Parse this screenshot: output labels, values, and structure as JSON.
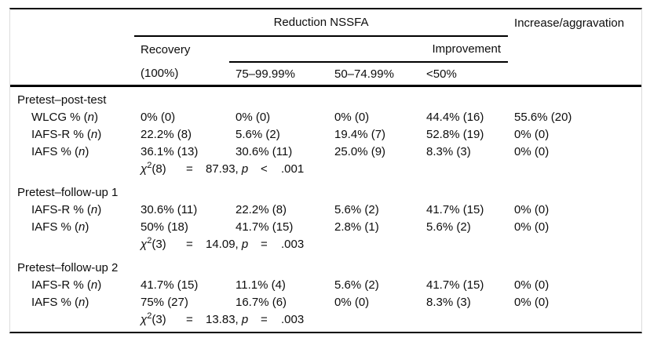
{
  "table": {
    "header": {
      "reduction_group": "Reduction NSSFA",
      "increase_col": "Increase/aggravation",
      "recovery": "Recovery",
      "improvement": "Improvement",
      "col_labels": [
        "(100%)",
        "75–99.99%",
        "50–74.99%",
        "<50%"
      ]
    },
    "shared": {
      "chi_symbol": "χ",
      "chi_sup": "2",
      "suffix_pre": " % (",
      "n": "n",
      "suffix_post": ")"
    },
    "sections": [
      {
        "title": "Pretest–post-test",
        "rows": [
          {
            "label": "WLCG",
            "cells": [
              "0% (0)",
              "0% (0)",
              "0% (0)",
              "44.4% (16)",
              "55.6% (20)"
            ]
          },
          {
            "label": "IAFS-R",
            "cells": [
              "22.2% (8)",
              "5.6% (2)",
              "19.4% (7)",
              "52.8% (19)",
              "0% (0)"
            ]
          },
          {
            "label": "IAFS",
            "cells": [
              "36.1% (13)",
              "30.6% (11)",
              "25.0% (9)",
              "8.3% (3)",
              "0% (0)"
            ]
          }
        ],
        "chi": {
          "df": "(8)",
          "eq": "=",
          "stat": "87.93,",
          "p": "p",
          "op": "<",
          "pval": ".001"
        }
      },
      {
        "title": "Pretest–follow-up 1",
        "rows": [
          {
            "label": "IAFS-R",
            "cells": [
              "30.6% (11)",
              "22.2% (8)",
              "5.6% (2)",
              "41.7% (15)",
              "0% (0)"
            ]
          },
          {
            "label": "IAFS",
            "cells": [
              "50% (18)",
              "41.7% (15)",
              "2.8% (1)",
              "5.6% (2)",
              "0% (0)"
            ]
          }
        ],
        "chi": {
          "df": "(3)",
          "eq": "=",
          "stat": "14.09,",
          "p": "p",
          "op": "=",
          "pval": ".003"
        }
      },
      {
        "title": "Pretest–follow-up 2",
        "rows": [
          {
            "label": "IAFS-R",
            "cells": [
              "41.7% (15)",
              "11.1% (4)",
              "5.6% (2)",
              "41.7% (15)",
              "0% (0)"
            ]
          },
          {
            "label": "IAFS",
            "cells": [
              "75% (27)",
              "16.7% (6)",
              "0% (0)",
              "8.3% (3)",
              "0% (0)"
            ]
          }
        ],
        "chi": {
          "df": "(3)",
          "eq": "=",
          "stat": "13.83,",
          "p": "p",
          "op": "=",
          "pval": ".003"
        }
      }
    ]
  },
  "colors": {
    "rule": "#000000",
    "side_border": "#dcdcdc",
    "text": "#0d0d0d",
    "background": "#ffffff"
  }
}
